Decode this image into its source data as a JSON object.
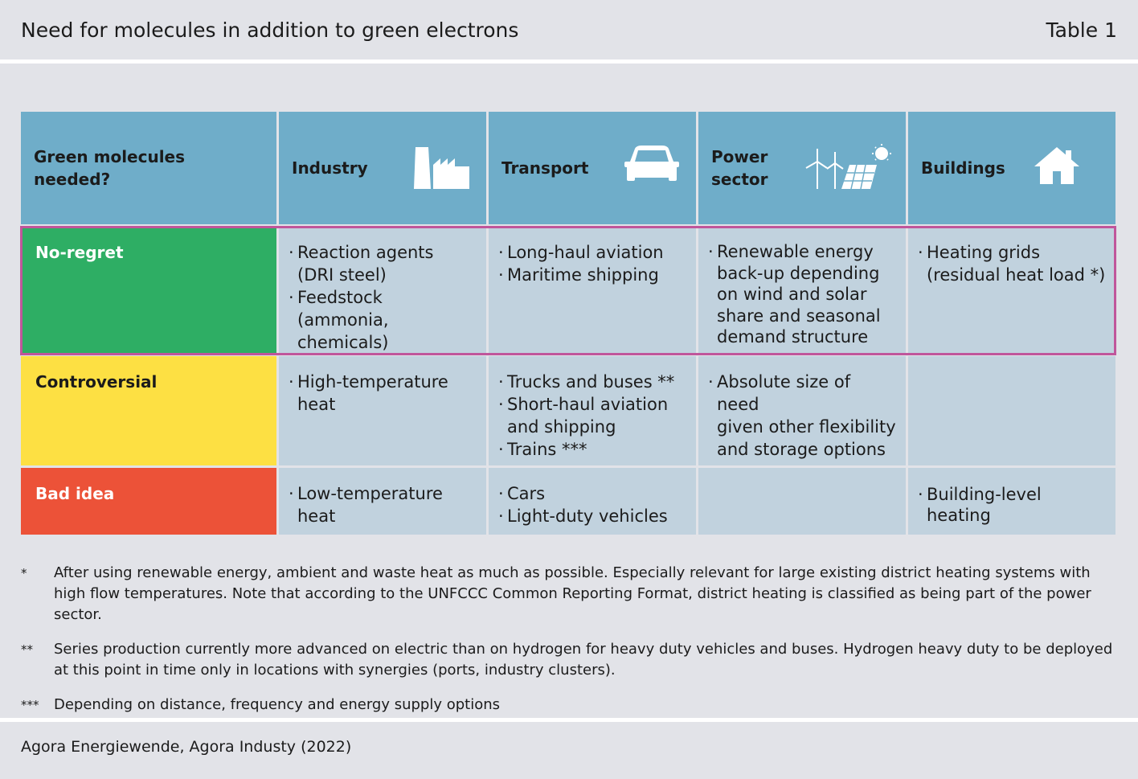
{
  "header": {
    "title": "Need for molecules in addition to green electrons",
    "table_label": "Table 1"
  },
  "table": {
    "corner": "Green molecules needed?",
    "columns": [
      {
        "label": "Industry",
        "icon": "factory-icon"
      },
      {
        "label": "Transport",
        "icon": "car-icon"
      },
      {
        "label_lines": [
          "Power",
          "sector"
        ],
        "icon": "wind-solar-icon"
      },
      {
        "label": "Buildings",
        "icon": "house-icon"
      }
    ],
    "rows": [
      {
        "category": "No-regret",
        "color": "#2eae64",
        "cells": [
          [
            [
              "Reaction agents",
              "(DRI steel)"
            ],
            [
              "Feedstock",
              "(ammonia, chemicals)"
            ]
          ],
          [
            [
              "Long-haul aviation"
            ],
            [
              "Maritime shipping"
            ]
          ],
          [
            [
              "Renewable energy",
              "back-up depending",
              "on wind and solar",
              "share and seasonal",
              "demand structure"
            ]
          ],
          [
            [
              "Heating grids",
              "(residual heat load *)"
            ]
          ]
        ]
      },
      {
        "category": "Controversial",
        "color": "#fde043",
        "cells": [
          [
            [
              "High-temperature",
              "heat"
            ]
          ],
          [
            [
              "Trucks and buses **"
            ],
            [
              "Short-haul aviation",
              "and shipping"
            ],
            [
              "Trains ***"
            ]
          ],
          [
            [
              "Absolute size of need",
              "given other flexibility",
              "and storage options"
            ]
          ],
          []
        ]
      },
      {
        "category": "Bad idea",
        "color": "#ec5238",
        "cells": [
          [
            [
              "Low-temperature",
              "heat"
            ]
          ],
          [
            [
              "Cars"
            ],
            [
              "Light-duty vehicles"
            ]
          ],
          [],
          [
            [
              "Building-level",
              "heating"
            ]
          ]
        ]
      }
    ],
    "highlight_color": "#c0569b"
  },
  "footnotes": [
    {
      "mark": "*",
      "lines": [
        "After using renewable energy, ambient and waste heat as much as possible. Especially relevant for large existing district heating systems with",
        "high flow temperatures. Note that according to the UNFCCC Common Reporting Format, district heating is classified as being part of the power sector."
      ]
    },
    {
      "mark": "**",
      "lines": [
        "Series production currently more advanced on electric than on hydrogen for heavy duty vehicles and buses. Hydrogen heavy duty to be deployed",
        "at this point in time only in locations with synergies (ports, industry clusters)."
      ]
    },
    {
      "mark": "***",
      "lines": [
        "Depending on distance, frequency and energy supply options"
      ]
    }
  ],
  "source": "Agora Energiewende, Agora Industy (2022)"
}
